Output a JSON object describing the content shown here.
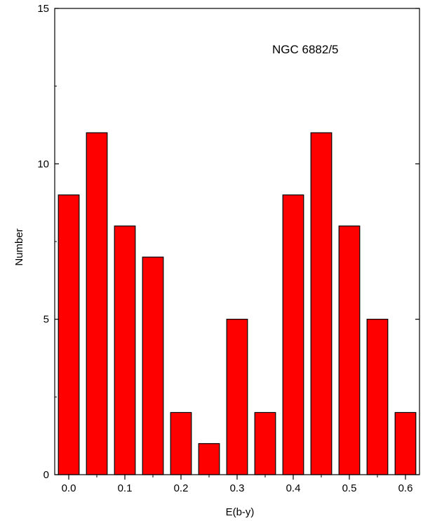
{
  "chart_data": {
    "type": "bar",
    "title": "",
    "annotation": "NGC 6882/5",
    "xlabel": "E(b-y)",
    "ylabel": "Number",
    "x": [
      0.0,
      0.05,
      0.1,
      0.15,
      0.2,
      0.25,
      0.3,
      0.35,
      0.4,
      0.45,
      0.5,
      0.55,
      0.6
    ],
    "values": [
      9,
      11,
      8,
      7,
      2,
      1,
      5,
      2,
      9,
      11,
      8,
      5,
      2
    ],
    "xlim": [
      -0.025,
      0.625
    ],
    "ylim": [
      0,
      15
    ],
    "xticks": [
      "0.0",
      "0.1",
      "0.2",
      "0.3",
      "0.4",
      "0.5",
      "0.6"
    ],
    "yticks": [
      "0",
      "5",
      "10",
      "15"
    ],
    "bar_color": "#ff0000",
    "edge_color": "#000000",
    "grid": false,
    "legend": false
  }
}
